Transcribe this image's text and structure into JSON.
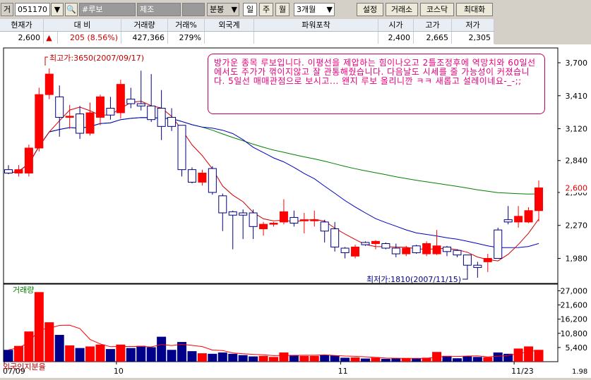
{
  "toolbar": {
    "mode": "거",
    "code": "051170",
    "name": "#루보",
    "sector": "제조",
    "period_type": "분봉",
    "day": "일",
    "week": "주",
    "month": "월",
    "range": "3개월",
    "settings": "설정",
    "kospi": "거래소",
    "kosdaq": "코스닥",
    "maximize": "최대화"
  },
  "quote": {
    "headers": [
      "현재가",
      "대 비",
      "거래량",
      "거래%",
      "외국계",
      "파워포착",
      "시가",
      "고가",
      "저가"
    ],
    "current": "2,600",
    "change_arrow": "▲",
    "change": "205 (8.56%)",
    "volume": "427,366",
    "volume_pct": "279%",
    "foreign": "",
    "power": "",
    "open": "2,400",
    "high": "2,665",
    "low": "2,305"
  },
  "annotation": "방가운 종목 루보입니다. 이평선을 제압하는 힘이나오고 2틀조정후에 역망치와 60일선에서도 주가가 꺾이지않고 잘 관통해줬습니다. 다음날도 시세를 줄 가능성이 커졌습니다. 5일선 매매관점으로 보시고... 왠지 루보 올리니깐 ㅋㅋ 새롭고 설레이네요-_-;;",
  "chart_data": {
    "type": "candlestick",
    "price_axis": {
      "ticks": [
        "3,700",
        "3,410",
        "3,120",
        "2,840",
        "2,560",
        "2,270",
        "1,980"
      ],
      "tick_values": [
        3700,
        3410,
        3120,
        2840,
        2560,
        2270,
        1980
      ],
      "current_label": "2,600",
      "current_value": 2600,
      "range": [
        1760,
        3830
      ]
    },
    "volume_axis": {
      "label": "거래량",
      "ticks": [
        "27,000",
        "21,600",
        "16,200",
        "10,800",
        "5,400"
      ],
      "tick_values": [
        27000,
        21600,
        16200,
        10800,
        5400
      ],
      "range": [
        0,
        29000
      ]
    },
    "x_labels": [
      "07/09",
      "10",
      "11",
      "11/23"
    ],
    "x_label_index": [
      0,
      11,
      33,
      50
    ],
    "high_marker": "최고가:3650(2007/09/17)",
    "low_marker": "최저가:1810(2007/11/15)",
    "foreign_ratio_label": "외국인지분율",
    "volume_ma_label": "1.98",
    "candles": [
      {
        "o": 2760,
        "h": 2800,
        "l": 2720,
        "c": 2730,
        "v": 4500
      },
      {
        "o": 2730,
        "h": 2800,
        "l": 2700,
        "c": 2760,
        "v": 6000
      },
      {
        "o": 2730,
        "h": 2980,
        "l": 2700,
        "c": 2950,
        "v": 11500
      },
      {
        "o": 2950,
        "h": 3480,
        "l": 2920,
        "c": 3420,
        "v": 26500
      },
      {
        "o": 3420,
        "h": 3650,
        "l": 3380,
        "c": 3600,
        "v": 15000
      },
      {
        "o": 3400,
        "h": 3500,
        "l": 3050,
        "c": 3220,
        "v": 10200
      },
      {
        "o": 3220,
        "h": 3330,
        "l": 3120,
        "c": 3230,
        "v": 6200
      },
      {
        "o": 3250,
        "h": 3320,
        "l": 3030,
        "c": 3080,
        "v": 5200
      },
      {
        "o": 3080,
        "h": 3350,
        "l": 3060,
        "c": 3260,
        "v": 5800
      },
      {
        "o": 3220,
        "h": 3420,
        "l": 3150,
        "c": 3400,
        "v": 6500
      },
      {
        "o": 3300,
        "h": 3400,
        "l": 3200,
        "c": 3240,
        "v": 4800
      },
      {
        "o": 3260,
        "h": 3550,
        "l": 3210,
        "c": 3510,
        "v": 6500
      },
      {
        "o": 3380,
        "h": 3480,
        "l": 3300,
        "c": 3340,
        "v": 5200
      },
      {
        "o": 3340,
        "h": 3630,
        "l": 3280,
        "c": 3320,
        "v": 6000
      },
      {
        "o": 3320,
        "h": 3600,
        "l": 3180,
        "c": 3200,
        "v": 5500
      },
      {
        "o": 3300,
        "h": 3460,
        "l": 3020,
        "c": 3140,
        "v": 9500
      },
      {
        "o": 3220,
        "h": 3300,
        "l": 3100,
        "c": 3140,
        "v": 4500
      },
      {
        "o": 3150,
        "h": 3150,
        "l": 2700,
        "c": 2760,
        "v": 7500
      },
      {
        "o": 2760,
        "h": 2780,
        "l": 2640,
        "c": 2650,
        "v": 4000
      },
      {
        "o": 2650,
        "h": 2760,
        "l": 2620,
        "c": 2730,
        "v": 3200
      },
      {
        "o": 2770,
        "h": 2790,
        "l": 2540,
        "c": 2560,
        "v": 3000
      },
      {
        "o": 2530,
        "h": 2550,
        "l": 2220,
        "c": 2380,
        "v": 3500
      },
      {
        "o": 2390,
        "h": 2400,
        "l": 2060,
        "c": 2360,
        "v": 3000
      },
      {
        "o": 2380,
        "h": 2410,
        "l": 2150,
        "c": 2360,
        "v": 2500
      },
      {
        "o": 2380,
        "h": 2410,
        "l": 2150,
        "c": 2260,
        "v": 2000
      },
      {
        "o": 2240,
        "h": 2300,
        "l": 2180,
        "c": 2280,
        "v": 2200
      },
      {
        "o": 2280,
        "h": 2300,
        "l": 2260,
        "c": 2290,
        "v": 1800
      },
      {
        "o": 2300,
        "h": 2500,
        "l": 2280,
        "c": 2390,
        "v": 3500
      },
      {
        "o": 2340,
        "h": 2400,
        "l": 2260,
        "c": 2290,
        "v": 2500
      },
      {
        "o": 2310,
        "h": 2380,
        "l": 2200,
        "c": 2320,
        "v": 2200
      },
      {
        "o": 2310,
        "h": 2400,
        "l": 2260,
        "c": 2320,
        "v": 2200
      },
      {
        "o": 2300,
        "h": 2320,
        "l": 2120,
        "c": 2220,
        "v": 2500
      },
      {
        "o": 2240,
        "h": 2300,
        "l": 2040,
        "c": 2080,
        "v": 2400
      },
      {
        "o": 2070,
        "h": 2080,
        "l": 1980,
        "c": 2030,
        "v": 1500
      },
      {
        "o": 2000,
        "h": 2100,
        "l": 1980,
        "c": 2080,
        "v": 1600
      },
      {
        "o": 2120,
        "h": 2130,
        "l": 2090,
        "c": 2100,
        "v": 1200
      },
      {
        "o": 2110,
        "h": 2140,
        "l": 2060,
        "c": 2130,
        "v": 1500
      },
      {
        "o": 2110,
        "h": 2120,
        "l": 2060,
        "c": 2070,
        "v": 1100
      },
      {
        "o": 2070,
        "h": 2110,
        "l": 1990,
        "c": 2020,
        "v": 1200
      },
      {
        "o": 2020,
        "h": 2090,
        "l": 2000,
        "c": 2070,
        "v": 1300
      },
      {
        "o": 2090,
        "h": 2100,
        "l": 2020,
        "c": 2030,
        "v": 1200
      },
      {
        "o": 2020,
        "h": 2130,
        "l": 2000,
        "c": 2110,
        "v": 1500
      },
      {
        "o": 2020,
        "h": 2230,
        "l": 2010,
        "c": 2090,
        "v": 3700
      },
      {
        "o": 2080,
        "h": 2090,
        "l": 2000,
        "c": 2040,
        "v": 2200
      },
      {
        "o": 2050,
        "h": 2060,
        "l": 1990,
        "c": 2010,
        "v": 1300
      },
      {
        "o": 2010,
        "h": 2010,
        "l": 1880,
        "c": 1920,
        "v": 2000
      },
      {
        "o": 1920,
        "h": 1950,
        "l": 1810,
        "c": 1900,
        "v": 1800
      },
      {
        "o": 1950,
        "h": 2020,
        "l": 1860,
        "c": 1980,
        "v": 1700
      },
      {
        "o": 2230,
        "h": 2250,
        "l": 1980,
        "c": 1980,
        "v": 3500
      },
      {
        "o": 2320,
        "h": 2440,
        "l": 2280,
        "c": 2300,
        "v": 3000
      },
      {
        "o": 2300,
        "h": 2440,
        "l": 2250,
        "c": 2350,
        "v": 5000
      },
      {
        "o": 2300,
        "h": 2430,
        "l": 2290,
        "c": 2400,
        "v": 5800
      },
      {
        "o": 2400,
        "h": 2665,
        "l": 2305,
        "c": 2600,
        "v": 4500
      }
    ]
  }
}
